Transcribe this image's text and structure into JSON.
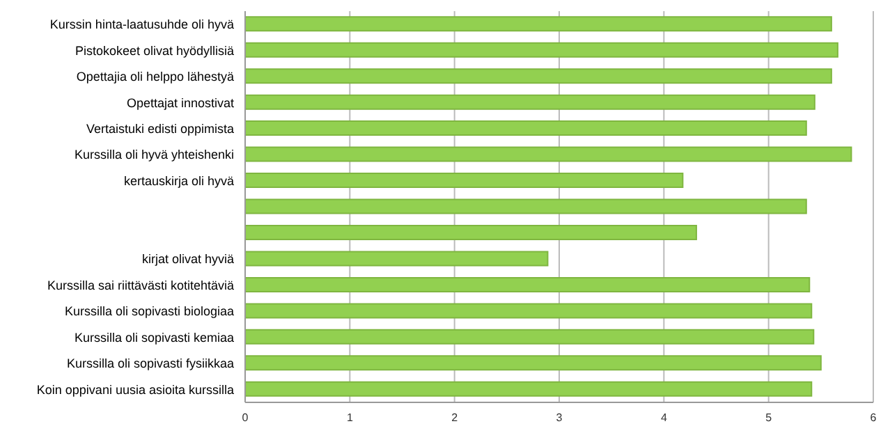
{
  "chart_data": {
    "type": "bar",
    "orientation": "horizontal",
    "categories": [
      "Kurssin hinta-laatusuhde oli hyvä",
      "Pistokokeet olivat hyödyllisiä",
      "Opettajia oli helppo lähestyä",
      "Opettajat innostivat",
      "Vertaistuki edisti oppimista",
      "Kurssilla oli hyvä yhteishenki",
      "kertauskirja oli hyvä",
      null,
      null,
      "kirjat olivat hyviä",
      "Kurssilla sai riittävästi kotitehtäviä",
      "Kurssilla oli sopivasti biologiaa",
      "Kurssilla oli sopivasti kemiaa",
      "Kurssilla oli sopivasti fysiikkaa",
      "Koin oppivani uusia asioita kurssilla"
    ],
    "values": [
      5.6,
      5.66,
      5.6,
      5.44,
      5.36,
      5.79,
      4.18,
      5.36,
      4.31,
      2.89,
      5.39,
      5.41,
      5.43,
      5.5,
      5.41
    ],
    "color": "#92d050",
    "xlim": [
      0,
      6
    ],
    "xticks": [
      0,
      1,
      2,
      3,
      4,
      5,
      6
    ],
    "grid": "x"
  }
}
